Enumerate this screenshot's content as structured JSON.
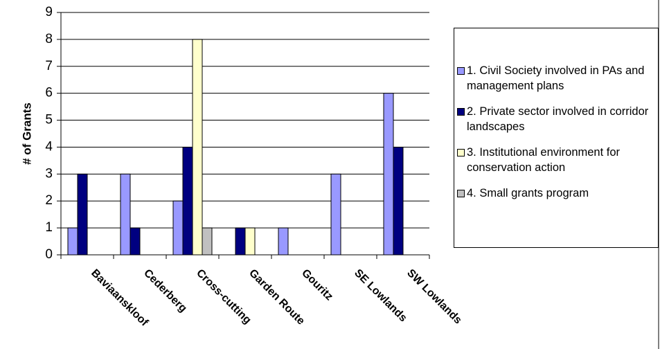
{
  "chart_data": {
    "type": "bar",
    "y_label": "# of Grants",
    "categories": [
      "Baviaanskloof",
      "Cederberg",
      "Cross-cutting",
      "Garden Route",
      "Gouritz",
      "SE Lowlands",
      "SW Lowlands"
    ],
    "series": [
      {
        "name": "1. Civil Society involved in PAs and management plans",
        "color": "#9999ff",
        "values": [
          1,
          3,
          2,
          0,
          1,
          3,
          6
        ]
      },
      {
        "name": "2. Private sector involved in corridor landscapes",
        "color": "#000080",
        "values": [
          3,
          1,
          4,
          1,
          0,
          0,
          4
        ]
      },
      {
        "name": "3. Institutional environment for conservation action",
        "color": "#ffffcc",
        "values": [
          0,
          0,
          8,
          1,
          0,
          0,
          0
        ]
      },
      {
        "name": "4. Small grants program",
        "color": "#c0c0c0",
        "values": [
          0,
          0,
          1,
          0,
          0,
          0,
          0
        ]
      }
    ],
    "ylim": [
      0,
      9
    ],
    "yticks": [
      0,
      1,
      2,
      3,
      4,
      5,
      6,
      7,
      8,
      9
    ],
    "grid": true
  }
}
